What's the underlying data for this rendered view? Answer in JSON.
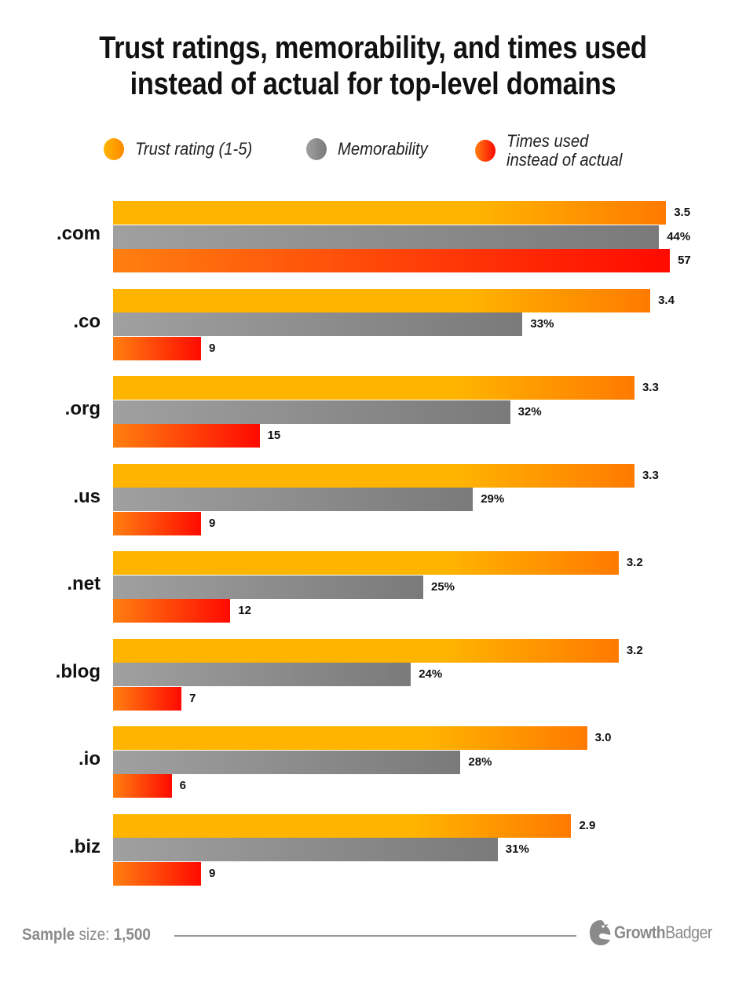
{
  "chart_data": {
    "type": "bar",
    "orientation": "horizontal",
    "title": "Trust ratings, memorability, and times used instead of actual for top-level domains",
    "title_lines": [
      "Trust ratings, memorability, and times used",
      "instead of actual for top-level domains"
    ],
    "categories": [
      ".com",
      ".co",
      ".org",
      ".us",
      ".net",
      ".blog",
      ".io",
      ".biz"
    ],
    "legend_placement": "top",
    "grid": false,
    "series": [
      {
        "name": "Trust rating (1-5)",
        "values": [
          3.5,
          3.4,
          3.3,
          3.3,
          3.2,
          3.2,
          3.0,
          2.9
        ],
        "labels": [
          "3.5",
          "3.4",
          "3.3",
          "3.3",
          "3.2",
          "3.2",
          "3.0",
          "2.9"
        ],
        "color_start": "#ffb400",
        "color_end": "#ff7a00"
      },
      {
        "name": "Memorability",
        "values": [
          44,
          33,
          32,
          29,
          25,
          24,
          28,
          31
        ],
        "labels": [
          "44%",
          "33%",
          "32%",
          "29%",
          "25%",
          "24%",
          "28%",
          "31%"
        ],
        "color_start": "#a0a0a0",
        "color_end": "#7a7a7a"
      },
      {
        "name": "Times used instead of actual",
        "name_lines": [
          "Times used",
          "instead of actual"
        ],
        "values": [
          57,
          9,
          15,
          9,
          12,
          7,
          6,
          9
        ],
        "labels": [
          "57",
          "9",
          "15",
          "9",
          "12",
          "7",
          "6",
          "9"
        ],
        "color_start": "#ff7f10",
        "color_end": "#ff0a00"
      }
    ]
  },
  "footer": {
    "sample_bold": "Sample",
    "sample_rest": " size: ",
    "sample_value": "1,500"
  },
  "logo": {
    "bold": "Growth",
    "rest": "Badger"
  }
}
